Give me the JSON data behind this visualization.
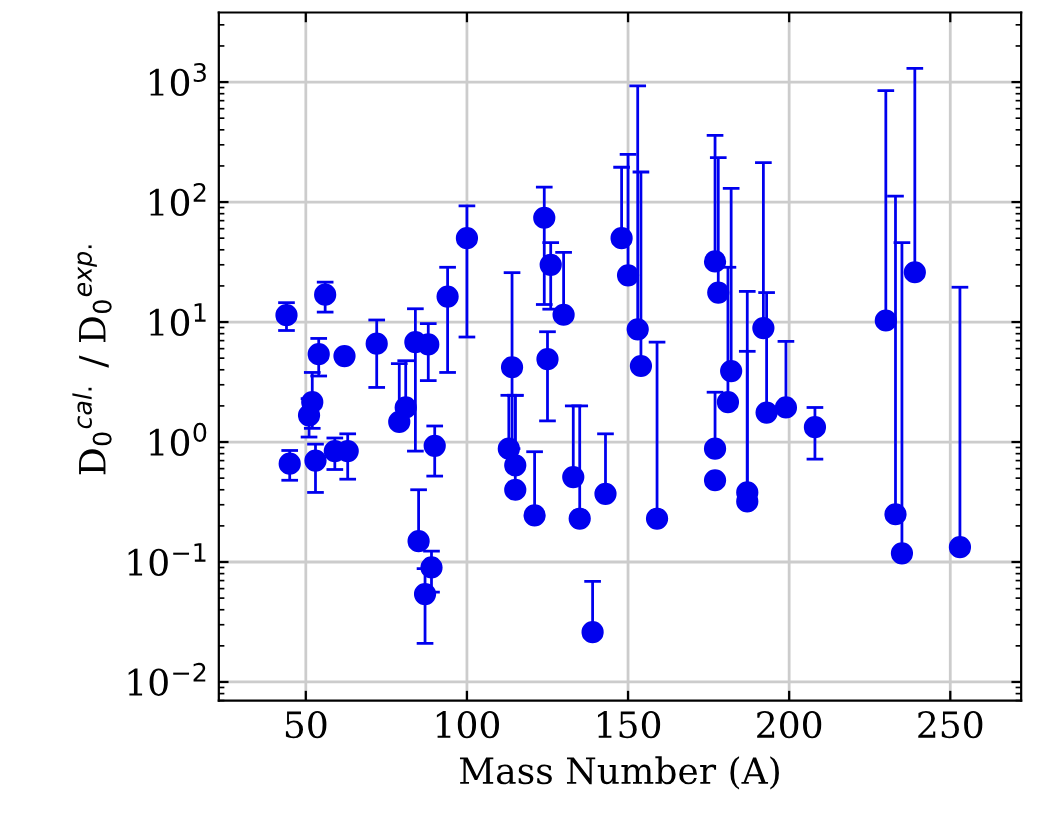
{
  "chart_data": {
    "type": "scatter",
    "xlabel": "Mass Number (A)",
    "ylabel": "D$_{0}$$^{cal.}$ / D$_{0}$$^{exp.}$",
    "log": "y",
    "grid": true,
    "marker": "circle",
    "color": "#0000ee",
    "xlim": [
      23,
      272
    ],
    "xticks": [
      50,
      100,
      150,
      200,
      250
    ],
    "ylim": [
      0.007,
      3800
    ],
    "yticks": [
      {
        "value": 0.01,
        "label": "10$^{−2}$"
      },
      {
        "value": 0.1,
        "label": "10$^{−1}$"
      },
      {
        "value": 1,
        "label": "10$^{0}$"
      },
      {
        "value": 10,
        "label": "10$^{1}$"
      },
      {
        "value": 100,
        "label": "10$^{2}$"
      },
      {
        "value": 1000,
        "label": "10$^{3}$"
      }
    ],
    "x": [
      44,
      45,
      51,
      52,
      53,
      54,
      56,
      59,
      62,
      63,
      72,
      79,
      81,
      84,
      85,
      88,
      87,
      89,
      90,
      94,
      100,
      114,
      113,
      115,
      115,
      121,
      124,
      126,
      130,
      125,
      133,
      135,
      143,
      139,
      148,
      150,
      153,
      154,
      159,
      177,
      178,
      177,
      177,
      181,
      182,
      187,
      187,
      192,
      193,
      199,
      208,
      230,
      233,
      235,
      239,
      253
    ],
    "values": [
      11.4,
      0.66,
      1.67,
      2.15,
      0.7,
      5.4,
      16.9,
      0.84,
      5.2,
      0.84,
      6.6,
      1.47,
      1.94,
      6.8,
      0.149,
      6.5,
      0.054,
      0.09,
      0.93,
      16.3,
      50,
      4.2,
      0.88,
      0.64,
      0.4,
      0.245,
      74,
      30,
      11.5,
      4.9,
      0.51,
      0.23,
      0.37,
      0.026,
      50,
      24.5,
      8.7,
      4.3,
      0.23,
      32,
      17.6,
      0.88,
      0.48,
      2.15,
      3.9,
      0.38,
      0.32,
      8.9,
      1.76,
      1.94,
      1.33,
      10.3,
      0.25,
      0.118,
      26,
      0.133
    ],
    "errors": [
      [
        8.5,
        14.5
      ],
      [
        0.48,
        0.85
      ],
      [
        1.1,
        2.3
      ],
      [
        1.3,
        3.8
      ],
      [
        0.38,
        0.96
      ],
      [
        3.55,
        7.3
      ],
      [
        12.1,
        21.5
      ],
      [
        0.59,
        1.08
      ],
      null,
      [
        0.49,
        1.17
      ],
      [
        2.85,
        10.4
      ],
      [
        1.47,
        4.5
      ],
      [
        1.94,
        4.76
      ],
      [
        0.84,
        12.9
      ],
      [
        0.149,
        0.4
      ],
      [
        3.25,
        9.7
      ],
      [
        0.021,
        0.088
      ],
      [
        0.056,
        0.123
      ],
      [
        0.52,
        1.36
      ],
      [
        3.8,
        28.6
      ],
      [
        7.5,
        93
      ],
      [
        0.88,
        25.8
      ],
      [
        0.88,
        2.45
      ],
      [
        0.64,
        2.45
      ],
      [
        0.4,
        2.45
      ],
      [
        0.245,
        0.83
      ],
      [
        14,
        133
      ],
      [
        12.8,
        46
      ],
      [
        11.5,
        38
      ],
      [
        1.5,
        8.3
      ],
      [
        0.51,
        2.0
      ],
      [
        0.23,
        2.0
      ],
      [
        0.37,
        1.17
      ],
      [
        0.026,
        0.069
      ],
      [
        50,
        195
      ],
      [
        24.5,
        250
      ],
      [
        8.7,
        930
      ],
      [
        4.3,
        178
      ],
      [
        0.23,
        6.8
      ],
      [
        32,
        360
      ],
      [
        17.6,
        235
      ],
      [
        0.88,
        2.6
      ],
      null,
      [
        2.15,
        28.6
      ],
      [
        3.9,
        130
      ],
      [
        0.38,
        18
      ],
      [
        0.32,
        5.7
      ],
      [
        8.9,
        213
      ],
      [
        1.76,
        17.6
      ],
      [
        1.94,
        6.9
      ],
      [
        0.72,
        1.94
      ],
      [
        10.3,
        850
      ],
      [
        0.25,
        112
      ],
      [
        0.118,
        46
      ],
      [
        26,
        1300
      ],
      [
        0.133,
        19.5
      ]
    ]
  }
}
